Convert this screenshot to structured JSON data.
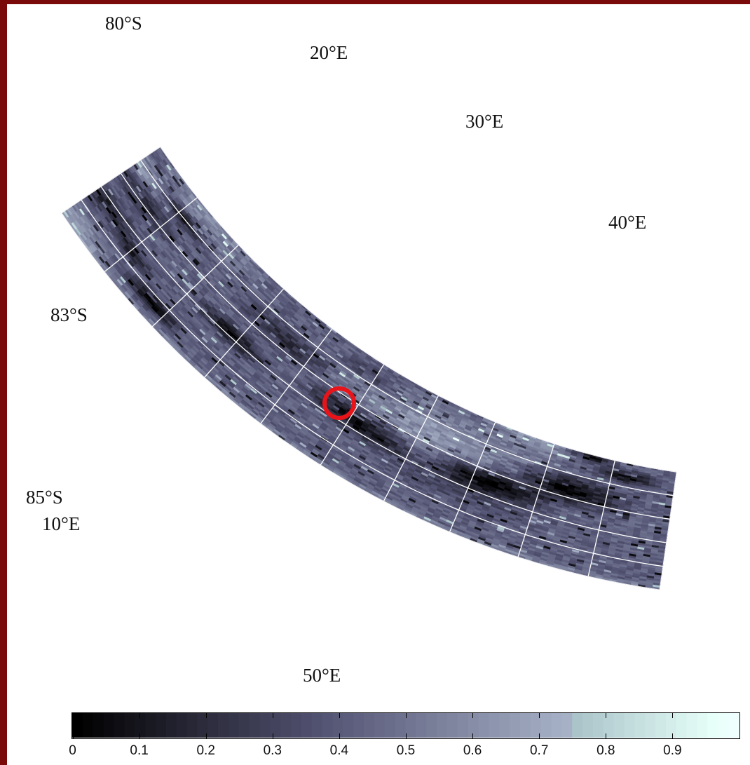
{
  "map": {
    "latitude_labels": [
      {
        "text": "80°S",
        "lat": -80
      },
      {
        "text": "83°S",
        "lat": -83
      },
      {
        "text": "85°S",
        "lat": -85
      }
    ],
    "longitude_labels": [
      {
        "text": "10°E",
        "lon": 10
      },
      {
        "text": "20°E",
        "lon": 20
      },
      {
        "text": "30°E",
        "lon": 30
      },
      {
        "text": "40°E",
        "lon": 40
      },
      {
        "text": "50°E",
        "lon": 50
      }
    ],
    "lat_range": [
      -85,
      -80
    ],
    "lon_range": [
      10,
      50
    ],
    "marker": {
      "color": "#e8141a",
      "description": "red-circle"
    },
    "grid_color": "#ffffff",
    "colormap": "bone"
  },
  "colorbar": {
    "ticks": [
      "0",
      "0.1",
      "0.2",
      "0.3",
      "0.4",
      "0.5",
      "0.6",
      "0.7",
      "0.8",
      "0.9"
    ],
    "range": [
      0,
      1
    ]
  }
}
